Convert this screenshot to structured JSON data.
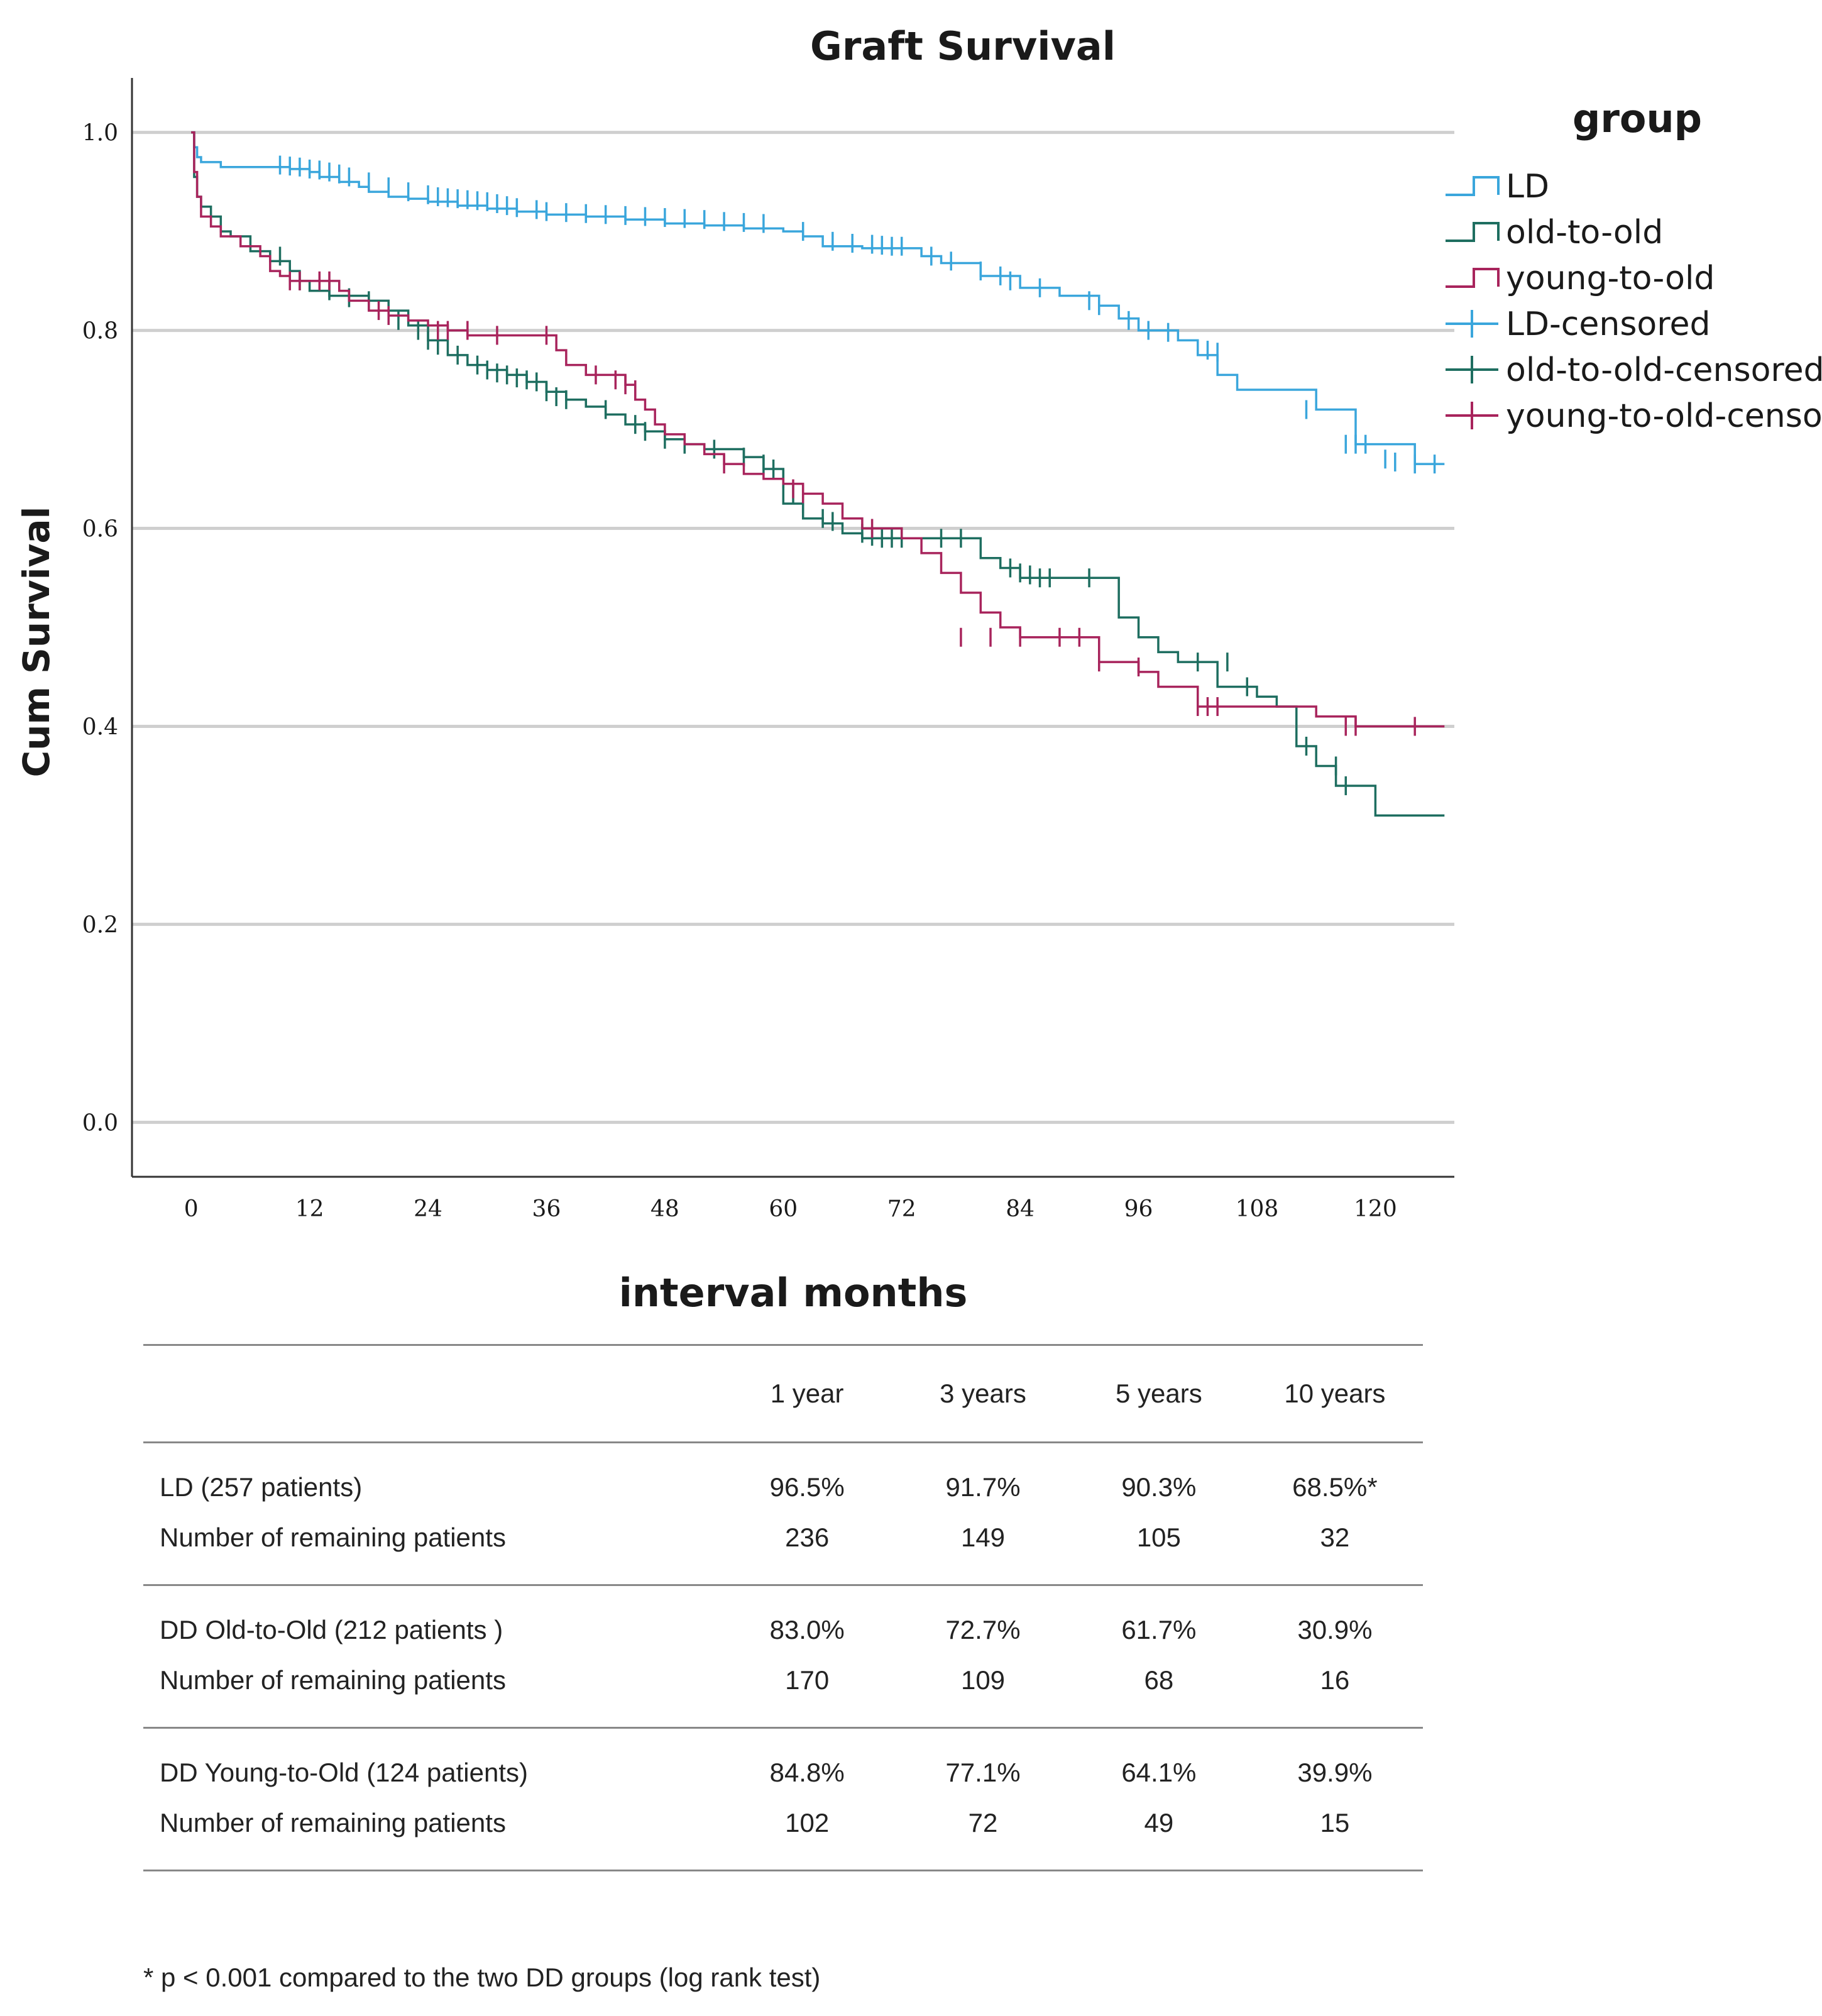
{
  "chart_data": {
    "type": "line",
    "title": "Graft Survival",
    "xlabel": "interval months",
    "ylabel": "Cum Survival",
    "xlim": [
      -6,
      128
    ],
    "ylim": [
      -0.055,
      1.055
    ],
    "xticks": [
      0,
      12,
      24,
      36,
      48,
      60,
      72,
      84,
      96,
      108,
      120
    ],
    "yticks": [
      0.0,
      0.2,
      0.4,
      0.6,
      0.8,
      1.0
    ],
    "ytick_labels": [
      "0.0",
      "0.2",
      "0.4",
      "0.6",
      "0.8",
      "1.0"
    ],
    "grid": "horizontal",
    "legend": {
      "title": "group",
      "placement": "right",
      "entries": [
        {
          "label": "LD",
          "color": "#3aa6dc",
          "kind": "step"
        },
        {
          "label": "old-to-old",
          "color": "#1e6e60",
          "kind": "step"
        },
        {
          "label": "young-to-old",
          "color": "#a8245c",
          "kind": "step"
        },
        {
          "label": "LD-censored",
          "color": "#3aa6dc",
          "kind": "censor"
        },
        {
          "label": "old-to-old-censored",
          "color": "#1e6e60",
          "kind": "censor"
        },
        {
          "label": "young-to-old-censored",
          "color": "#a8245c",
          "kind": "censor"
        }
      ]
    },
    "series": [
      {
        "name": "LD",
        "color": "#3aa6dc",
        "x": [
          0,
          0.3,
          0.6,
          1,
          3,
          7,
          10,
          12,
          13,
          15,
          17,
          18,
          20,
          22,
          24,
          27,
          30,
          33,
          36,
          40,
          44,
          48,
          52,
          56,
          60,
          62,
          64,
          68,
          72,
          74,
          76,
          80,
          84,
          88,
          92,
          94,
          96,
          100,
          102,
          104,
          106,
          114,
          118,
          120,
          124,
          127
        ],
        "y": [
          1.0,
          0.985,
          0.975,
          0.97,
          0.965,
          0.965,
          0.963,
          0.96,
          0.955,
          0.95,
          0.945,
          0.94,
          0.935,
          0.933,
          0.93,
          0.926,
          0.923,
          0.92,
          0.917,
          0.915,
          0.912,
          0.908,
          0.906,
          0.903,
          0.9,
          0.895,
          0.885,
          0.883,
          0.883,
          0.875,
          0.868,
          0.855,
          0.843,
          0.835,
          0.825,
          0.812,
          0.8,
          0.79,
          0.775,
          0.755,
          0.74,
          0.72,
          0.685,
          0.685,
          0.665,
          0.665
        ],
        "censored_x": [
          9,
          10,
          11,
          12,
          13,
          14,
          15,
          16,
          18,
          20,
          22,
          24,
          25,
          26,
          27,
          28,
          29,
          30,
          31,
          32,
          33,
          35,
          36,
          38,
          40,
          42,
          44,
          46,
          48,
          50,
          52,
          54,
          56,
          58,
          62,
          65,
          67,
          69,
          70,
          71,
          72,
          75,
          77,
          80,
          82,
          83,
          86,
          91,
          92,
          95,
          97,
          99,
          103,
          104,
          113,
          117,
          118,
          119,
          121,
          122,
          124,
          126
        ],
        "censored_y": [
          0.967,
          0.966,
          0.965,
          0.963,
          0.962,
          0.96,
          0.958,
          0.955,
          0.95,
          0.945,
          0.94,
          0.937,
          0.935,
          0.934,
          0.933,
          0.932,
          0.931,
          0.93,
          0.928,
          0.926,
          0.924,
          0.922,
          0.92,
          0.919,
          0.918,
          0.917,
          0.916,
          0.915,
          0.914,
          0.913,
          0.912,
          0.91,
          0.909,
          0.908,
          0.9,
          0.89,
          0.888,
          0.887,
          0.886,
          0.885,
          0.885,
          0.875,
          0.87,
          0.86,
          0.855,
          0.85,
          0.843,
          0.83,
          0.825,
          0.81,
          0.8,
          0.798,
          0.78,
          0.778,
          0.72,
          0.685,
          0.685,
          0.685,
          0.67,
          0.667,
          0.665,
          0.665
        ]
      },
      {
        "name": "old-to-old",
        "color": "#1e6e60",
        "x": [
          0,
          0.3,
          0.6,
          1,
          2,
          3,
          4,
          6,
          8,
          10,
          11,
          12,
          14,
          18,
          20,
          22,
          24,
          26,
          28,
          30,
          32,
          34,
          36,
          38,
          40,
          42,
          44,
          46,
          48,
          50,
          52,
          56,
          58,
          60,
          62,
          64,
          66,
          68,
          70,
          72,
          80,
          82,
          84,
          90,
          94,
          96,
          98,
          100,
          104,
          108,
          110,
          112,
          114,
          116,
          120,
          124,
          127
        ],
        "y": [
          1.0,
          0.955,
          0.935,
          0.925,
          0.915,
          0.9,
          0.895,
          0.88,
          0.87,
          0.86,
          0.85,
          0.84,
          0.835,
          0.83,
          0.82,
          0.805,
          0.79,
          0.775,
          0.765,
          0.76,
          0.755,
          0.748,
          0.738,
          0.73,
          0.723,
          0.715,
          0.705,
          0.698,
          0.69,
          0.685,
          0.68,
          0.672,
          0.66,
          0.625,
          0.61,
          0.605,
          0.595,
          0.59,
          0.59,
          0.59,
          0.57,
          0.56,
          0.55,
          0.55,
          0.51,
          0.49,
          0.475,
          0.465,
          0.44,
          0.43,
          0.42,
          0.38,
          0.36,
          0.34,
          0.31,
          0.31,
          0.31
        ],
        "censored_x": [
          9,
          11,
          14,
          16,
          18,
          21,
          23,
          24,
          25,
          27,
          29,
          30,
          31,
          32,
          33,
          34,
          35,
          36,
          37,
          38,
          42,
          45,
          46,
          48,
          50,
          53,
          56,
          58,
          59,
          60,
          61,
          62,
          64,
          65,
          68,
          69,
          70,
          71,
          72,
          76,
          78,
          83,
          84,
          85,
          86,
          87,
          91,
          102,
          105,
          107,
          113,
          116,
          117
        ],
        "censored_y": [
          0.875,
          0.85,
          0.84,
          0.833,
          0.83,
          0.81,
          0.8,
          0.79,
          0.785,
          0.775,
          0.765,
          0.76,
          0.757,
          0.755,
          0.752,
          0.75,
          0.748,
          0.738,
          0.733,
          0.73,
          0.72,
          0.705,
          0.698,
          0.69,
          0.685,
          0.68,
          0.672,
          0.665,
          0.66,
          0.65,
          0.635,
          0.625,
          0.61,
          0.607,
          0.595,
          0.592,
          0.59,
          0.59,
          0.59,
          0.59,
          0.59,
          0.56,
          0.555,
          0.553,
          0.55,
          0.55,
          0.55,
          0.465,
          0.465,
          0.44,
          0.38,
          0.36,
          0.34
        ]
      },
      {
        "name": "young-to-old",
        "color": "#a8245c",
        "x": [
          0,
          0.3,
          0.6,
          1,
          2,
          3,
          5,
          7,
          8,
          9,
          10,
          12,
          15,
          16,
          18,
          20,
          22,
          24,
          26,
          28,
          36,
          37,
          38,
          40,
          42,
          44,
          45,
          46,
          47,
          48,
          50,
          52,
          54,
          56,
          58,
          60,
          62,
          64,
          66,
          68,
          72,
          74,
          76,
          78,
          80,
          82,
          84,
          90,
          92,
          96,
          98,
          102,
          106,
          112,
          114,
          118,
          127
        ],
        "y": [
          1.0,
          0.96,
          0.935,
          0.915,
          0.905,
          0.895,
          0.885,
          0.875,
          0.86,
          0.855,
          0.85,
          0.85,
          0.84,
          0.83,
          0.82,
          0.815,
          0.81,
          0.805,
          0.8,
          0.795,
          0.795,
          0.78,
          0.765,
          0.755,
          0.755,
          0.745,
          0.73,
          0.72,
          0.705,
          0.695,
          0.685,
          0.675,
          0.665,
          0.655,
          0.65,
          0.645,
          0.635,
          0.625,
          0.61,
          0.6,
          0.59,
          0.575,
          0.555,
          0.535,
          0.515,
          0.5,
          0.49,
          0.49,
          0.465,
          0.455,
          0.44,
          0.42,
          0.42,
          0.42,
          0.41,
          0.4,
          0.4
        ],
        "censored_x": [
          10,
          11,
          13,
          14,
          19,
          20,
          25,
          26,
          28,
          31,
          36,
          41,
          43,
          44,
          45,
          54,
          61,
          62,
          69,
          78,
          81,
          84,
          88,
          90,
          92,
          96,
          102,
          103,
          104,
          117,
          118,
          124
        ],
        "censored_y": [
          0.85,
          0.85,
          0.85,
          0.85,
          0.82,
          0.815,
          0.8,
          0.8,
          0.8,
          0.795,
          0.795,
          0.755,
          0.75,
          0.745,
          0.74,
          0.665,
          0.64,
          0.635,
          0.6,
          0.49,
          0.49,
          0.49,
          0.49,
          0.49,
          0.465,
          0.46,
          0.42,
          0.42,
          0.42,
          0.4,
          0.4,
          0.4
        ]
      }
    ]
  },
  "table": {
    "columns": [
      "",
      "1 year",
      "3 years",
      "5 years",
      "10 years"
    ],
    "groups": [
      {
        "name": "LD (257 patients)",
        "values": [
          "96.5%",
          "91.7%",
          "90.3%",
          "68.5%*"
        ],
        "remaining_label": "Number of remaining patients",
        "remaining": [
          "236",
          "149",
          "105",
          "32"
        ]
      },
      {
        "name": "DD Old-to-Old (212 patients )",
        "values": [
          "83.0%",
          "72.7%",
          "61.7%",
          "30.9%"
        ],
        "remaining_label": "Number of remaining patients",
        "remaining": [
          "170",
          "109",
          "68",
          "16"
        ]
      },
      {
        "name": "DD Young-to-Old (124 patients)",
        "values": [
          "84.8%",
          "77.1%",
          "64.1%",
          "39.9%"
        ],
        "remaining_label": "Number of remaining patients",
        "remaining": [
          "102",
          "72",
          "49",
          "15"
        ]
      }
    ]
  },
  "footnote": "* p < 0.001 compared to the two DD groups (log rank test)"
}
